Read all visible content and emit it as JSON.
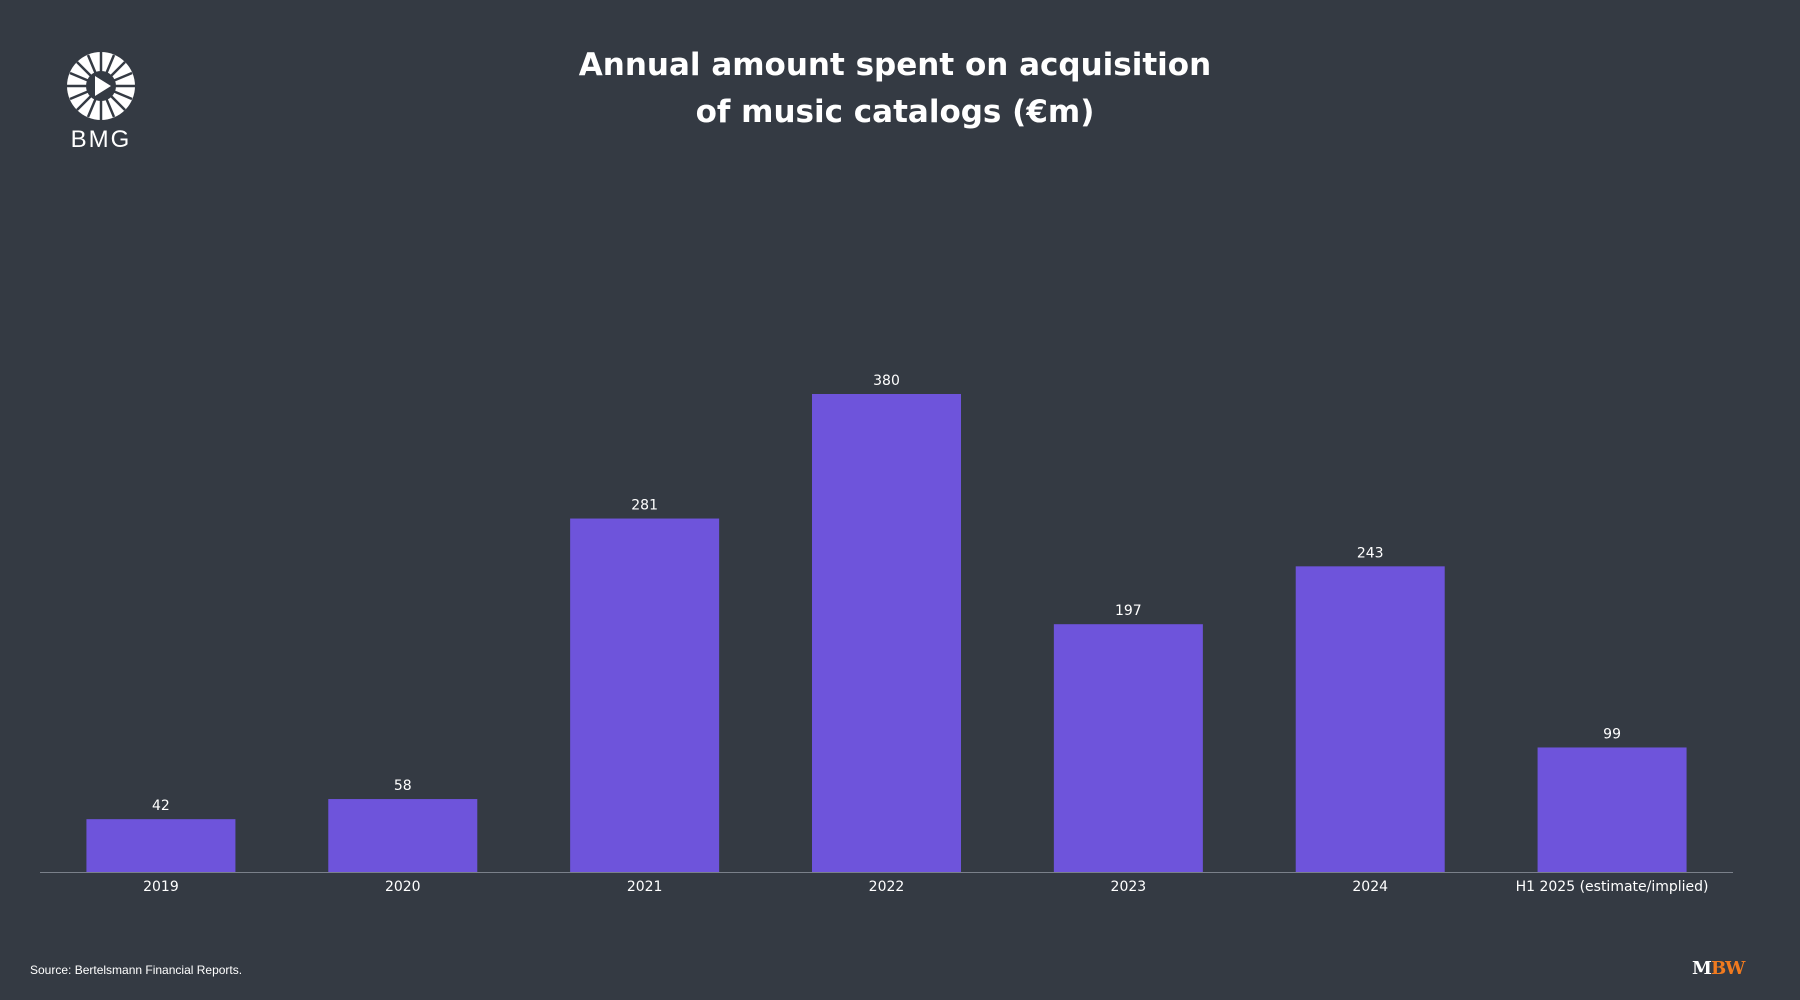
{
  "logo": {
    "text": "BMG",
    "icon": "bmg-play-emblem-icon"
  },
  "header": {
    "title_line1": "Annual amount spent on acquisition",
    "title_line2": "of music catalogs (€m)"
  },
  "footer": {
    "source": "Source: Bertelsmann Financial Reports.",
    "brand_m": "M",
    "brand_bw": "BW"
  },
  "colors": {
    "background": "#343a43",
    "bar": "#6e54db",
    "text": "#ffffff",
    "axis": "#7a808a",
    "brand_accent": "#f07a1f"
  },
  "chart_data": {
    "type": "bar",
    "title": "Annual amount spent on acquisition of music catalogs (€m)",
    "categories": [
      "2019",
      "2020",
      "2021",
      "2022",
      "2023",
      "2024",
      "H1 2025 (estimate/implied)"
    ],
    "values": [
      42,
      58,
      281,
      380,
      197,
      243,
      99
    ],
    "data_labels": [
      "42",
      "58",
      "281",
      "380",
      "197",
      "243",
      "99"
    ],
    "xlabel": "",
    "ylabel": "",
    "ylim": [
      0,
      380
    ],
    "grid": false,
    "legend": "none"
  }
}
